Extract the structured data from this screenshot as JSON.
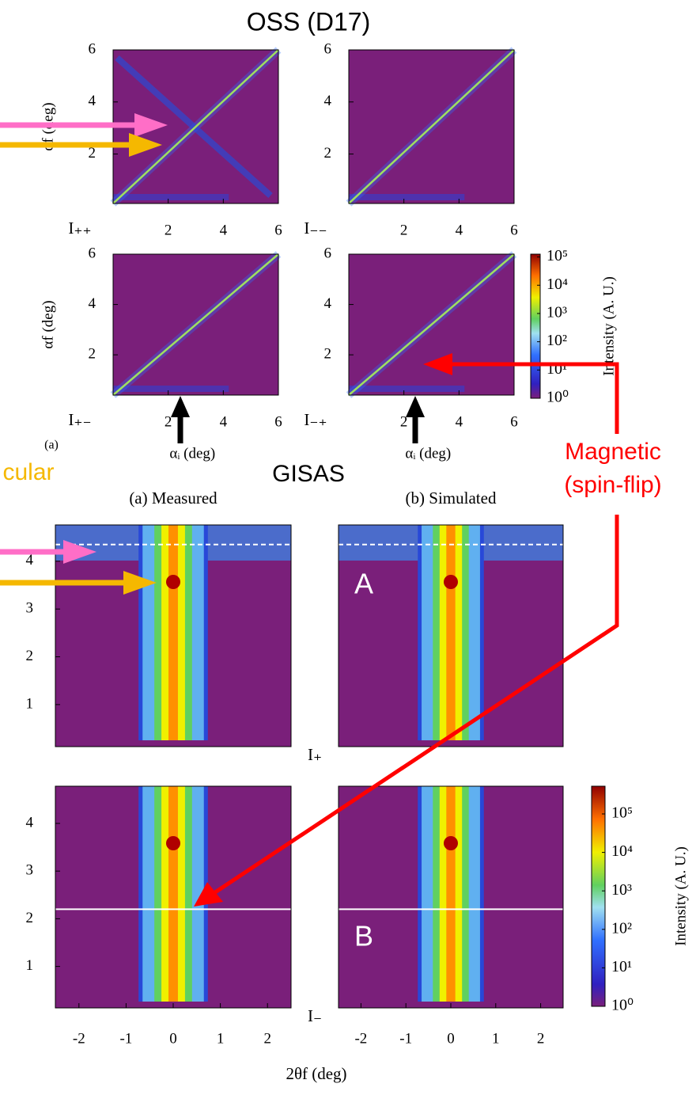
{
  "figure_title": "OSS (D17)",
  "section_title": "GISAS",
  "annotations": {
    "magnetic": "Magnetic",
    "spin_flip": "(spin-flip)",
    "specular_fragment": "cular",
    "panel_tag": "(a)",
    "shared_xlabel": "2θf (deg)"
  },
  "chart_data": [
    {
      "type": "heatmap",
      "kind": "oss",
      "channel": "I₊₊",
      "ylabel": "αf (deg)",
      "xlim": [
        0,
        6
      ],
      "ylim": [
        0.1,
        6
      ],
      "xticks": [
        2,
        4,
        6
      ],
      "yticks": [
        2,
        4,
        6
      ]
    },
    {
      "type": "heatmap",
      "kind": "oss",
      "channel": "I₋₋",
      "xlim": [
        0,
        6
      ],
      "ylim": [
        0.1,
        6
      ],
      "xticks": [
        2,
        4,
        6
      ],
      "yticks": [
        2,
        4,
        6
      ]
    },
    {
      "type": "heatmap",
      "kind": "oss",
      "channel": "I₊₋",
      "ylabel": "αf (deg)",
      "xlabel": "αᵢ (deg)",
      "xlim": [
        0,
        6
      ],
      "ylim": [
        0.4,
        6
      ],
      "xticks": [
        2,
        4,
        6
      ],
      "yticks": [
        2,
        4,
        6
      ]
    },
    {
      "type": "heatmap",
      "kind": "oss",
      "channel": "I₋₊",
      "xlabel": "αᵢ (deg)",
      "xlim": [
        0,
        6
      ],
      "ylim": [
        0.4,
        6
      ],
      "xticks": [
        2,
        4,
        6
      ],
      "yticks": [
        2,
        4,
        6
      ]
    },
    {
      "type": "colorbar",
      "label": "Intensity (A. U.)",
      "ylim": [
        0,
        5.1
      ],
      "yticks": [
        {
          "value": 0,
          "label": "10⁰"
        },
        {
          "value": 1,
          "label": "10¹"
        },
        {
          "value": 2,
          "label": "10²"
        },
        {
          "value": 3,
          "label": "10³"
        },
        {
          "value": 4,
          "label": "10⁴"
        },
        {
          "value": 5,
          "label": "10⁵"
        }
      ]
    },
    {
      "type": "heatmap",
      "kind": "gisas",
      "subtitle": "(a) Measured",
      "xlim": [
        -2.5,
        2.5
      ],
      "ylim": [
        0.12,
        4.76
      ],
      "yticks": [
        1,
        2,
        3,
        4
      ],
      "hline": 4.35
    },
    {
      "type": "heatmap",
      "kind": "gisas",
      "subtitle": "(b) Simulated",
      "panel_label": "A",
      "channel": "I₊",
      "xlim": [
        -2.5,
        2.5
      ],
      "ylim": [
        0.12,
        4.76
      ],
      "hline": 4.35
    },
    {
      "type": "heatmap",
      "kind": "gisas",
      "xlim": [
        -2.5,
        2.5
      ],
      "ylim": [
        0.13,
        4.78
      ],
      "xticks": [
        -2,
        -1,
        0,
        1,
        2
      ],
      "yticks": [
        1,
        2,
        3,
        4
      ],
      "hline": 2.2
    },
    {
      "type": "heatmap",
      "kind": "gisas",
      "panel_label": "B",
      "channel": "I₋",
      "xlim": [
        -2.5,
        2.5
      ],
      "ylim": [
        0.13,
        4.78
      ],
      "xticks": [
        -2,
        -1,
        0,
        1,
        2
      ],
      "hline": 2.2
    },
    {
      "type": "colorbar",
      "label": "Intensity (A. U.)",
      "ylim": [
        0,
        5.72
      ],
      "yticks": [
        {
          "value": 0,
          "label": "10⁰"
        },
        {
          "value": 1,
          "label": "10¹"
        },
        {
          "value": 2,
          "label": "10²"
        },
        {
          "value": 3,
          "label": "10³"
        },
        {
          "value": 4,
          "label": "10⁴"
        },
        {
          "value": 5,
          "label": "10⁵"
        }
      ]
    }
  ]
}
